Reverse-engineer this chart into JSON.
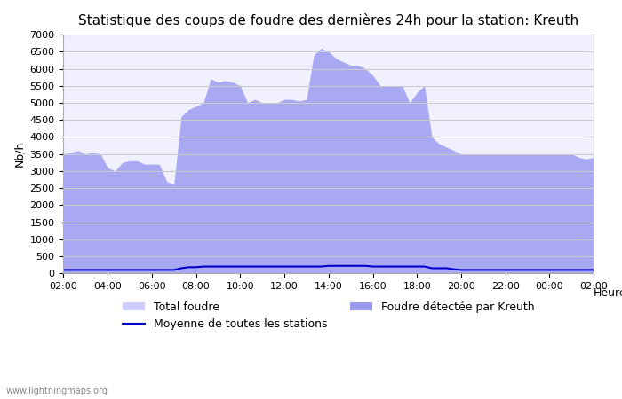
{
  "title": "Statistique des coups de foudre des dernières 24h pour la station: Kreuth",
  "xlabel": "Heure",
  "ylabel": "Nb/h",
  "ylim": [
    0,
    7000
  ],
  "yticks": [
    0,
    500,
    1000,
    1500,
    2000,
    2500,
    3000,
    3500,
    4000,
    4500,
    5000,
    5500,
    6000,
    6500,
    7000
  ],
  "xtick_labels": [
    "02:00",
    "04:00",
    "06:00",
    "08:00",
    "10:00",
    "12:00",
    "14:00",
    "16:00",
    "18:00",
    "20:00",
    "22:00",
    "00:00",
    "02:00"
  ],
  "watermark": "www.lightningmaps.org",
  "legend": [
    {
      "label": "Total foudre",
      "color": "#ccccff",
      "type": "fill"
    },
    {
      "label": "Moyenne de toutes les stations",
      "color": "#0000cc",
      "type": "line"
    },
    {
      "label": "Foudre détectée par Kreuth",
      "color": "#9999ee",
      "type": "fill"
    }
  ],
  "total_foudre": [
    3500,
    3550,
    3600,
    3500,
    3550,
    3500,
    3100,
    3000,
    3250,
    3300,
    3300,
    3200,
    3200,
    3200,
    2700,
    2600,
    4600,
    4800,
    4900,
    5000,
    5700,
    5600,
    5650,
    5600,
    5500,
    5000,
    5100,
    5000,
    5000,
    5000,
    5100,
    5100,
    5050,
    5100,
    6400,
    6600,
    6500,
    6300,
    6200,
    6100,
    6100,
    6000,
    5800,
    5500,
    5500,
    5500,
    5500,
    5000,
    5300,
    5500,
    4000,
    3800,
    3700,
    3600,
    3500,
    3500,
    3500,
    3500,
    3500,
    3500,
    3500,
    3500,
    3500,
    3500,
    3500,
    3500,
    3500,
    3500,
    3500,
    3500,
    3400,
    3350,
    3400
  ],
  "kreuth": [
    3500,
    3550,
    3600,
    3500,
    3550,
    3500,
    3100,
    3000,
    3250,
    3300,
    3300,
    3200,
    3200,
    3200,
    2700,
    2600,
    4600,
    4800,
    4900,
    5000,
    5700,
    5600,
    5650,
    5600,
    5500,
    5000,
    5100,
    5000,
    5000,
    5000,
    5100,
    5100,
    5050,
    5100,
    6400,
    6600,
    6500,
    6300,
    6200,
    6100,
    6100,
    6000,
    5800,
    5500,
    5500,
    5500,
    5500,
    5000,
    5300,
    5500,
    4000,
    3800,
    3700,
    3600,
    3500,
    3500,
    3500,
    3500,
    3500,
    3500,
    3500,
    3500,
    3500,
    3500,
    3500,
    3500,
    3500,
    3500,
    3500,
    3500,
    3400,
    3350,
    3400
  ],
  "moyenne": [
    100,
    100,
    100,
    100,
    100,
    100,
    100,
    100,
    100,
    100,
    100,
    100,
    100,
    100,
    100,
    100,
    150,
    180,
    180,
    200,
    200,
    200,
    200,
    200,
    200,
    200,
    200,
    200,
    200,
    200,
    200,
    200,
    200,
    200,
    200,
    200,
    220,
    220,
    220,
    220,
    220,
    220,
    200,
    200,
    200,
    200,
    200,
    200,
    200,
    200,
    150,
    150,
    150,
    120,
    100,
    100,
    100,
    100,
    100,
    100,
    100,
    100,
    100,
    100,
    100,
    100,
    100,
    100,
    100,
    100,
    100,
    100,
    100
  ],
  "bg_color": "#ffffff",
  "plot_bg_color": "#f0f0ff",
  "fill_total_color": "#ccccff",
  "fill_kreuth_color": "#9999ee",
  "line_moyenne_color": "#0000cc",
  "grid_color": "#cccccc",
  "title_fontsize": 11,
  "axis_fontsize": 9,
  "tick_fontsize": 8
}
